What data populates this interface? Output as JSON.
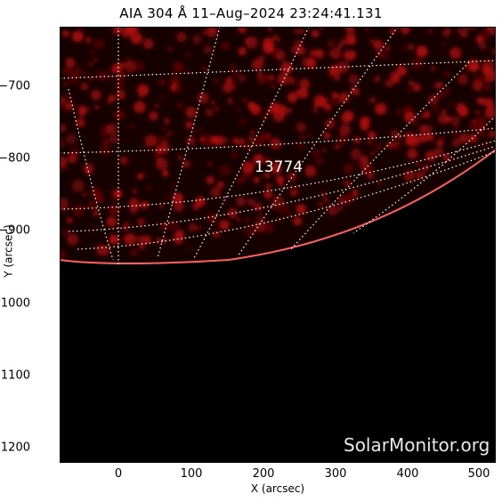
{
  "title": "AIA 304 Å 11–Aug–2024 23:24:41.131",
  "x_axis": {
    "label": "X (arcsec)",
    "ticks": [
      "0",
      "100",
      "200",
      "300",
      "400",
      "500"
    ],
    "range": [
      -80,
      520
    ]
  },
  "y_axis": {
    "label": "Y (arcsec)",
    "ticks": [
      "−700",
      "−800",
      "−900",
      "−1000",
      "−1100",
      "−1200"
    ],
    "range": [
      -1220,
      -620
    ]
  },
  "active_region": "13774",
  "watermark": "SolarMonitor.org",
  "colors": {
    "background": "#000000",
    "emission": "#c01010",
    "grid": "#ffffff"
  }
}
